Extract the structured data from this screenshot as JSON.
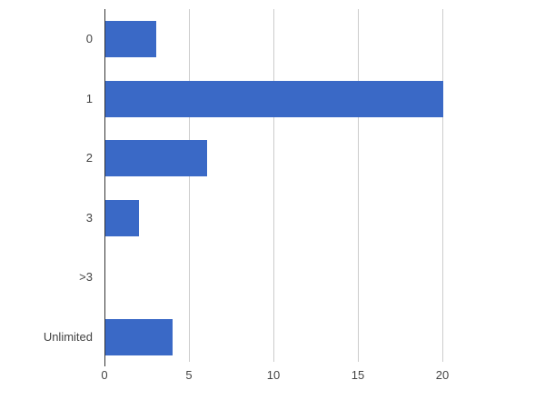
{
  "chart_data": {
    "type": "bar",
    "orientation": "horizontal",
    "title": "",
    "xlabel": "",
    "ylabel": "",
    "categories": [
      "0",
      "1",
      "2",
      "3",
      ">3",
      "Unlimited"
    ],
    "values": [
      3,
      20,
      6,
      2,
      0,
      4
    ],
    "xlim": [
      0,
      20
    ],
    "xticks": [
      0,
      5,
      10,
      15,
      20
    ],
    "grid": "vertical-only",
    "legend": "none",
    "colors": {
      "bar": "#3a69c6",
      "gridline": "#cccccc",
      "baseline": "#333333",
      "tick_label": "#444444",
      "background": "#ffffff"
    }
  }
}
